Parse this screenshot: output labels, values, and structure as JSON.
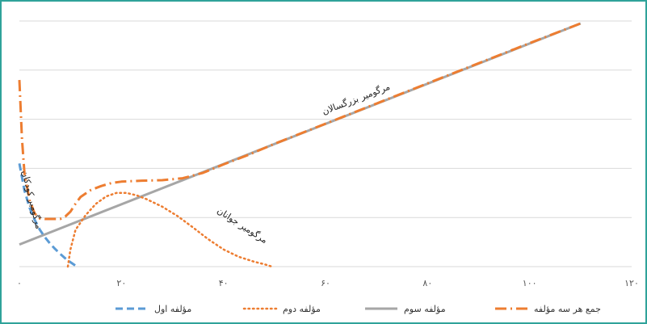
{
  "chart_data": {
    "type": "line",
    "title": "",
    "xlabel": "",
    "ylabel": "",
    "xlim": [
      0,
      120
    ],
    "x_ticks": [
      {
        "value": 0,
        "label": "۰"
      },
      {
        "value": 20,
        "label": "۲۰"
      },
      {
        "value": 40,
        "label": "۴۰"
      },
      {
        "value": 60,
        "label": "۶۰"
      },
      {
        "value": 80,
        "label": "۸۰"
      },
      {
        "value": 100,
        "label": "۱۰۰"
      },
      {
        "value": 120,
        "label": "۱۲۰"
      }
    ],
    "ylim": [
      0,
      5
    ],
    "grid": true,
    "legend_position": "bottom",
    "series": [
      {
        "name": "مؤلفه اول",
        "color": "#5b9bd5",
        "style": "dashed",
        "points": [
          [
            0,
            2.1
          ],
          [
            1,
            1.55
          ],
          [
            2,
            1.2
          ],
          [
            3,
            0.95
          ],
          [
            4,
            0.75
          ],
          [
            5,
            0.6
          ],
          [
            6,
            0.47
          ],
          [
            7,
            0.36
          ],
          [
            8,
            0.26
          ],
          [
            9,
            0.17
          ],
          [
            10,
            0.09
          ],
          [
            11,
            0.02
          ]
        ]
      },
      {
        "name": "مؤلفه دوم",
        "color": "#ed7d31",
        "style": "dotted",
        "points": [
          [
            9.5,
            0.0
          ],
          [
            10,
            0.35
          ],
          [
            11,
            0.75
          ],
          [
            13,
            1.05
          ],
          [
            15,
            1.28
          ],
          [
            17,
            1.43
          ],
          [
            19,
            1.5
          ],
          [
            21,
            1.5
          ],
          [
            23,
            1.45
          ],
          [
            25,
            1.37
          ],
          [
            28,
            1.22
          ],
          [
            31,
            1.03
          ],
          [
            34,
            0.8
          ],
          [
            37,
            0.56
          ],
          [
            40,
            0.35
          ],
          [
            43,
            0.2
          ],
          [
            46,
            0.1
          ],
          [
            48,
            0.05
          ],
          [
            49.5,
            0.0
          ]
        ]
      },
      {
        "name": "مؤلفه سوم",
        "color": "#a6a6a6",
        "style": "solid",
        "points": [
          [
            0,
            0.45
          ],
          [
            110,
            4.95
          ]
        ]
      },
      {
        "name": "جمع هر سه مؤلفه",
        "color": "#ed7d31",
        "style": "dashdot",
        "points": [
          [
            0,
            3.8
          ],
          [
            0.5,
            2.6
          ],
          [
            1,
            1.9
          ],
          [
            2,
            1.35
          ],
          [
            3,
            1.08
          ],
          [
            4,
            0.98
          ],
          [
            5,
            0.97
          ],
          [
            6,
            0.97
          ],
          [
            7,
            0.97
          ],
          [
            8,
            0.97
          ],
          [
            9,
            1.02
          ],
          [
            10,
            1.12
          ],
          [
            11,
            1.28
          ],
          [
            12,
            1.42
          ],
          [
            14,
            1.56
          ],
          [
            16,
            1.64
          ],
          [
            18,
            1.7
          ],
          [
            20,
            1.73
          ],
          [
            24,
            1.75
          ],
          [
            28,
            1.76
          ],
          [
            32,
            1.8
          ],
          [
            36,
            1.91
          ],
          [
            40,
            2.08
          ],
          [
            45,
            2.28
          ],
          [
            50,
            2.5
          ],
          [
            60,
            2.91
          ],
          [
            70,
            3.32
          ],
          [
            80,
            3.73
          ],
          [
            90,
            4.14
          ],
          [
            100,
            4.55
          ],
          [
            110,
            4.95
          ]
        ]
      }
    ],
    "annotations": [
      {
        "text": "مرگومیر بزرگسالان"
      },
      {
        "text": "مرگومیر جوانان"
      },
      {
        "text": "مرگومیر کودکان"
      }
    ]
  }
}
